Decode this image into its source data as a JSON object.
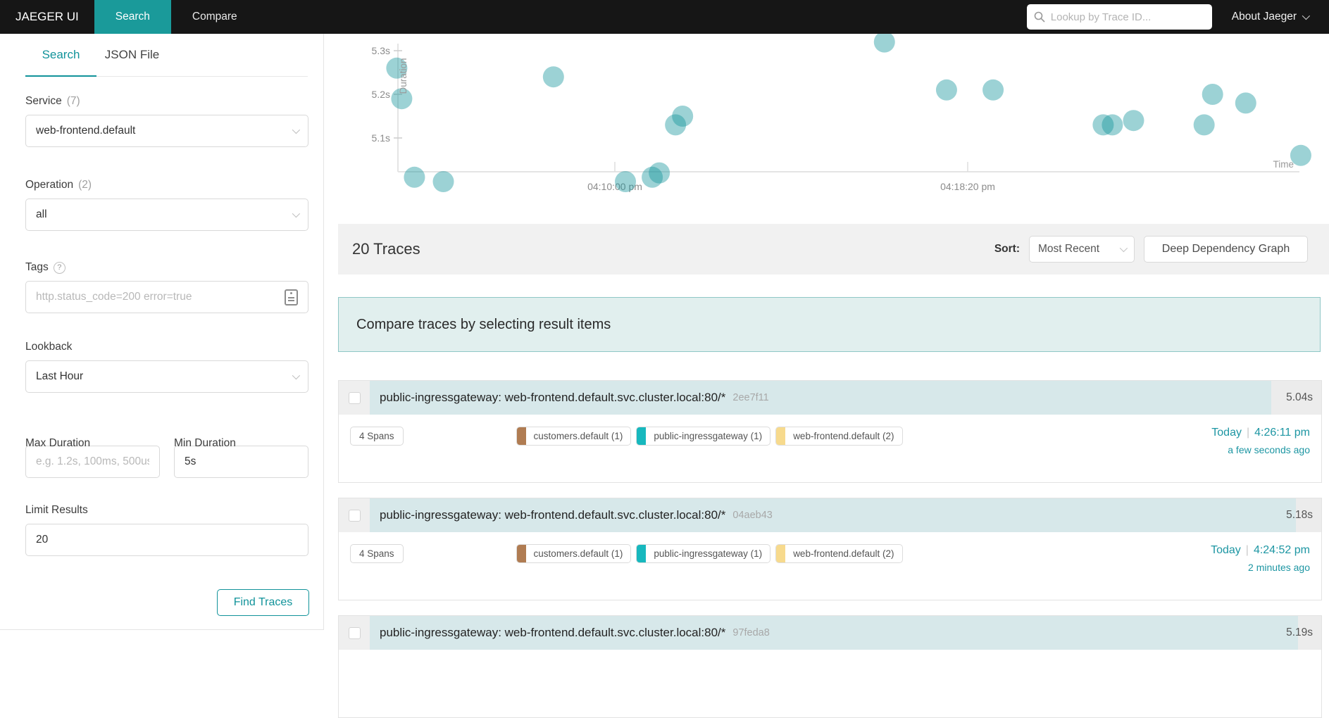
{
  "colors": {
    "navbar_bg": "#161616",
    "accent": "#11939a",
    "nav_active_bg": "#1a9a9a",
    "link_teal": "#1d96a3",
    "scatter_dot": "rgba(18,147,154,0.42)",
    "duration_bar": "#d7e8ea",
    "banner_bg": "#e1efee",
    "banner_border": "#8fc7c7"
  },
  "navbar": {
    "brand": "JAEGER UI",
    "items": [
      {
        "label": "Search"
      },
      {
        "label": "Compare"
      }
    ],
    "trace_lookup_placeholder": "Lookup by Trace ID...",
    "about_label": "About Jaeger"
  },
  "sidebar": {
    "tabs": [
      {
        "label": "Search"
      },
      {
        "label": "JSON File"
      }
    ],
    "service": {
      "label": "Service",
      "count": "(7)",
      "value": "web-frontend.default"
    },
    "operation": {
      "label": "Operation",
      "count": "(2)",
      "value": "all"
    },
    "tags": {
      "label": "Tags",
      "placeholder": "http.status_code=200 error=true"
    },
    "lookback": {
      "label": "Lookback",
      "value": "Last Hour"
    },
    "max_duration": {
      "label": "Max Duration",
      "placeholder": "e.g. 1.2s, 100ms, 500us"
    },
    "min_duration": {
      "label": "Min Duration",
      "value": "5s"
    },
    "limit_results": {
      "label": "Limit Results",
      "value": "20"
    },
    "find_button": "Find Traces"
  },
  "chart_data": {
    "type": "scatter",
    "xlabel": "Time",
    "ylabel": "Duration",
    "y_ticks": [
      {
        "label": "5.3s",
        "value": 5.3
      },
      {
        "label": "5.2s",
        "value": 5.2
      },
      {
        "label": "5.1s",
        "value": 5.1
      }
    ],
    "x_ticks": [
      {
        "label": "04:10:00 pm",
        "time": "16:10:00"
      },
      {
        "label": "04:18:20 pm",
        "time": "16:18:20"
      }
    ],
    "points": [
      {
        "time": "16:04:51",
        "duration_s": 5.26
      },
      {
        "time": "16:04:58",
        "duration_s": 5.19
      },
      {
        "time": "16:05:16",
        "duration_s": 5.01
      },
      {
        "time": "16:05:57",
        "duration_s": 5.0
      },
      {
        "time": "16:08:33",
        "duration_s": 5.24
      },
      {
        "time": "16:10:15",
        "duration_s": 5.0
      },
      {
        "time": "16:10:53",
        "duration_s": 5.01
      },
      {
        "time": "16:11:03",
        "duration_s": 5.02
      },
      {
        "time": "16:11:26",
        "duration_s": 5.13
      },
      {
        "time": "16:11:36",
        "duration_s": 5.15
      },
      {
        "time": "16:16:22",
        "duration_s": 5.32
      },
      {
        "time": "16:17:50",
        "duration_s": 5.21
      },
      {
        "time": "16:18:56",
        "duration_s": 5.21
      },
      {
        "time": "16:21:32",
        "duration_s": 5.13
      },
      {
        "time": "16:21:45",
        "duration_s": 5.13
      },
      {
        "time": "16:22:15",
        "duration_s": 5.14
      },
      {
        "time": "16:23:55",
        "duration_s": 5.13
      },
      {
        "time": "16:24:07",
        "duration_s": 5.2
      },
      {
        "time": "16:24:54",
        "duration_s": 5.18
      },
      {
        "time": "16:26:12",
        "duration_s": 5.06
      }
    ]
  },
  "results": {
    "count_label": "20 Traces",
    "sort_label": "Sort:",
    "sort_value": "Most Recent",
    "ddg_button": "Deep Dependency Graph",
    "compare_banner": "Compare traces by selecting result items",
    "max_duration_s": 5.32,
    "traces": [
      {
        "title": "public-ingressgateway: web-frontend.default.svc.cluster.local:80/*",
        "id": "2ee7f11",
        "duration": "5.04s",
        "duration_s": 5.04,
        "spans": "4 Spans",
        "tags": [
          {
            "label": "customers.default (1)",
            "color": "#b07c52"
          },
          {
            "label": "public-ingressgateway (1)",
            "color": "#17b8be"
          },
          {
            "label": "web-frontend.default (2)",
            "color": "#f7da8d"
          }
        ],
        "day": "Today",
        "time": "4:26:11 pm",
        "relative": "a few seconds ago"
      },
      {
        "title": "public-ingressgateway: web-frontend.default.svc.cluster.local:80/*",
        "id": "04aeb43",
        "duration": "5.18s",
        "duration_s": 5.18,
        "spans": "4 Spans",
        "tags": [
          {
            "label": "customers.default (1)",
            "color": "#b07c52"
          },
          {
            "label": "public-ingressgateway (1)",
            "color": "#17b8be"
          },
          {
            "label": "web-frontend.default (2)",
            "color": "#f7da8d"
          }
        ],
        "day": "Today",
        "time": "4:24:52 pm",
        "relative": "2 minutes ago"
      },
      {
        "title": "public-ingressgateway: web-frontend.default.svc.cluster.local:80/*",
        "id": "97feda8",
        "duration": "5.19s",
        "duration_s": 5.19,
        "spans": "",
        "tags": [],
        "day": "",
        "time": "",
        "relative": ""
      }
    ]
  }
}
